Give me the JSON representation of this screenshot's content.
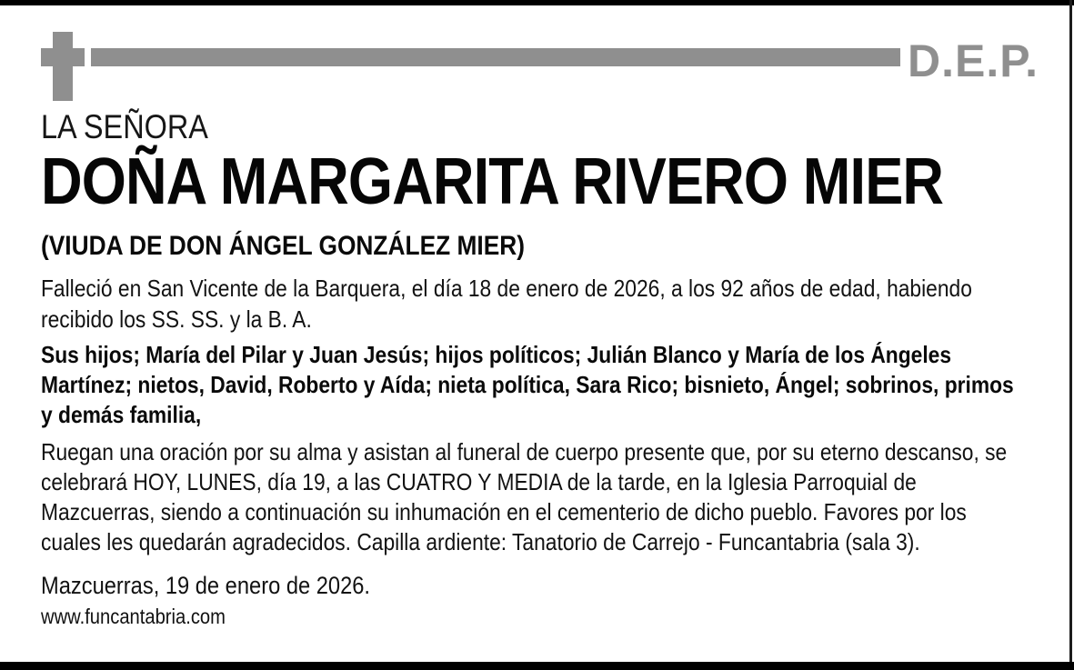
{
  "colors": {
    "gray_accent": "#8f8f8f",
    "text": "#0d0d0d",
    "frame": "#000000",
    "background": "#ffffff"
  },
  "header": {
    "cross_icon": "cross-icon",
    "dep_label": "D.E.P."
  },
  "notice": {
    "salutation": "LA SEÑORA",
    "deceased_name": "DOÑA MARGARITA RIVERO MIER",
    "relation": "(VIUDA DE DON ÁNGEL GONZÁLEZ MIER)",
    "death_details": "Falleció en San Vicente de la Barquera, el día 18 de enero de 2026, a los 92 años de edad, habiendo recibido los SS. SS. y la B. A.",
    "family": "Sus hijos; María del Pilar y Juan Jesús; hijos políticos; Julián Blanco y María de los Ángeles Martínez; nietos, David, Roberto y Aída; nieta política, Sara Rico; bisnieto, Ángel; sobrinos, primos y demás familia,",
    "funeral_announcement": "Ruegan una oración por su alma y asistan al funeral de cuerpo presente que, por su eterno descanso, se celebrará HOY, LUNES, día 19, a las CUATRO Y MEDIA de la tarde, en la Iglesia Parroquial de Mazcuerras, siendo a continuación su inhumación en el cementerio de dicho pueblo. Favores por los cuales les quedarán agradecidos. Capilla ardiente: Tanatorio de Carrejo - Funcantabria (sala 3).",
    "place_date": "Mazcuerras, 19 de enero de 2026.",
    "website": "www.funcantabria.com"
  }
}
